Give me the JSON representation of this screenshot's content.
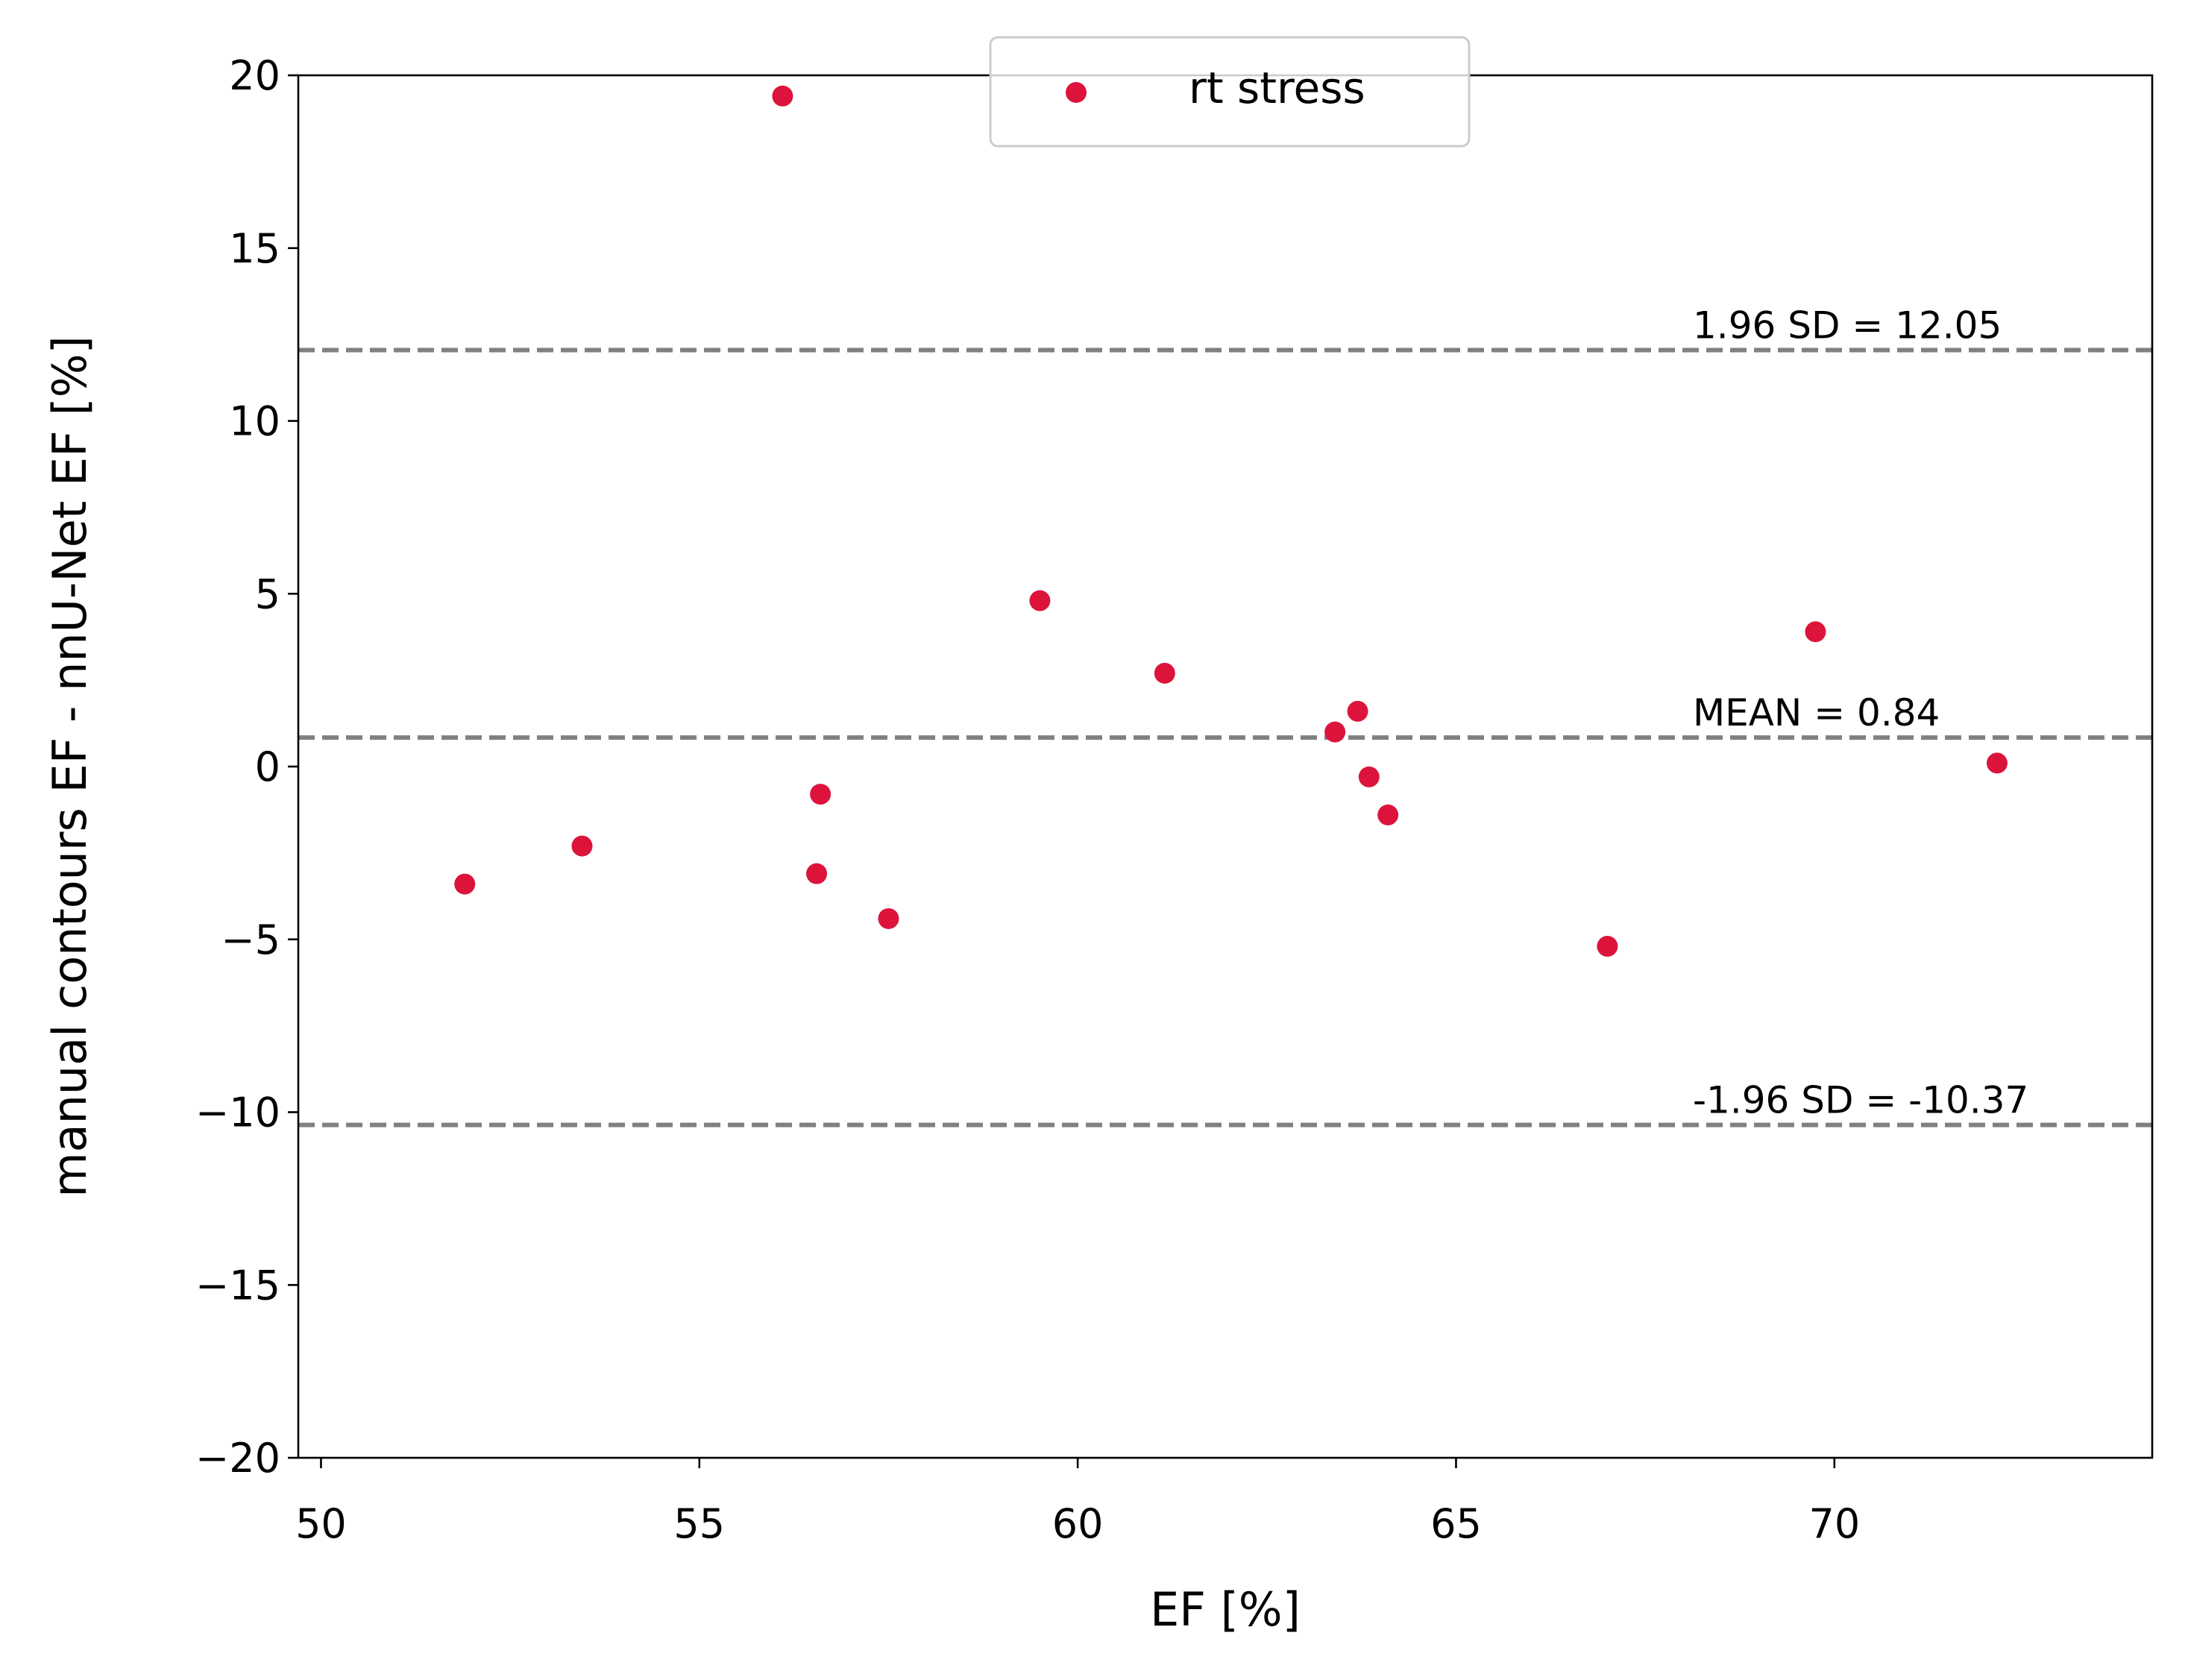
{
  "chart_data": {
    "type": "scatter",
    "title": "",
    "xlabel": "EF [%]",
    "ylabel": "manual contours EF - nnU-Net EF [%]",
    "xlim": [
      49.7,
      74.2
    ],
    "ylim": [
      -20,
      20
    ],
    "xticks": [
      50,
      55,
      60,
      65,
      70
    ],
    "xtick_labels": [
      "50",
      "55",
      "60",
      "65",
      "70"
    ],
    "yticks": [
      -20,
      -15,
      -10,
      -5,
      0,
      5,
      10,
      15,
      20
    ],
    "ytick_labels": [
      "−20",
      "−15",
      "−10",
      "−5",
      "0",
      "5",
      "10",
      "15",
      "20"
    ],
    "grid": false,
    "legend": {
      "placement": "upper center",
      "entries": [
        "rt stress"
      ]
    },
    "series": [
      {
        "name": "rt stress",
        "color": "#dc143c",
        "points": [
          {
            "x": 51.9,
            "y": -3.4
          },
          {
            "x": 53.45,
            "y": -2.3
          },
          {
            "x": 56.1,
            "y": 19.4
          },
          {
            "x": 56.55,
            "y": -3.1
          },
          {
            "x": 56.6,
            "y": -0.8
          },
          {
            "x": 57.5,
            "y": -4.4
          },
          {
            "x": 59.5,
            "y": 4.8
          },
          {
            "x": 61.15,
            "y": 2.7
          },
          {
            "x": 63.4,
            "y": 1.0
          },
          {
            "x": 63.7,
            "y": 1.6
          },
          {
            "x": 63.85,
            "y": -0.3
          },
          {
            "x": 64.1,
            "y": -1.4
          },
          {
            "x": 67.0,
            "y": -5.2
          },
          {
            "x": 69.75,
            "y": 3.9
          },
          {
            "x": 72.15,
            "y": 0.1
          }
        ]
      }
    ],
    "reference_lines": [
      {
        "y": 12.05,
        "label": "1.96 SD = 12.05",
        "color": "#808080"
      },
      {
        "y": 0.84,
        "label": "MEAN = 0.84",
        "color": "#808080"
      },
      {
        "y": -10.37,
        "label": "-1.96 SD = -10.37",
        "color": "#808080"
      }
    ]
  }
}
